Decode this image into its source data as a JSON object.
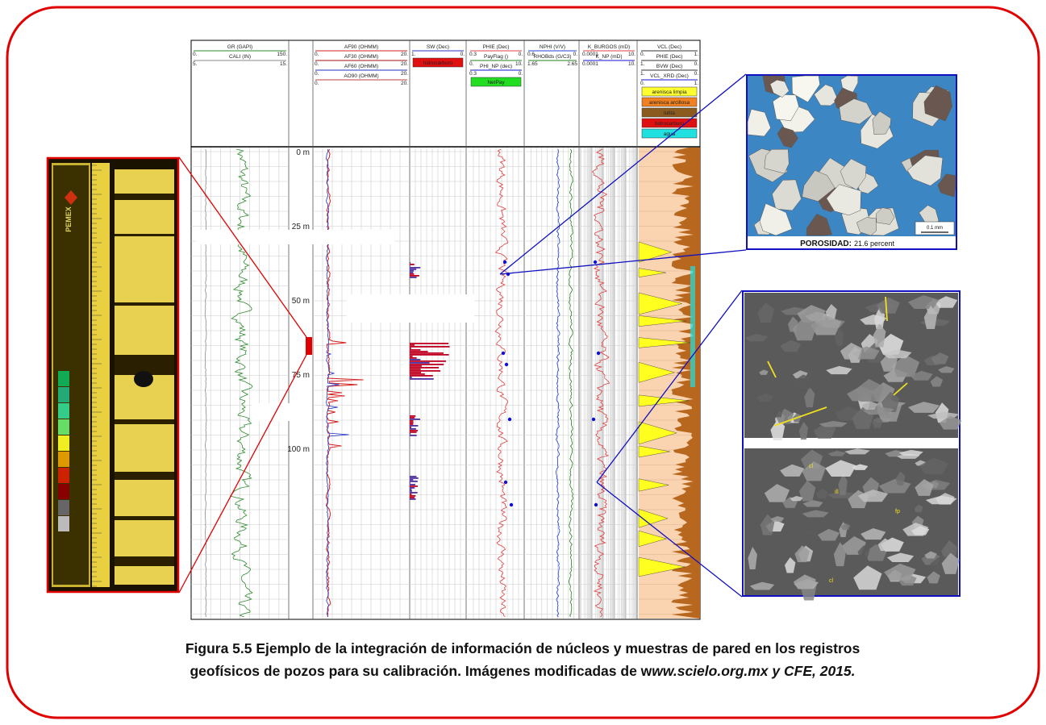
{
  "log": {
    "tracks": [
      {
        "curves": [
          {
            "name": "GR (GAPI)",
            "min": "0.",
            "max": "150.",
            "color": "#2e8b2e"
          },
          {
            "name": "CALI (IN)",
            "min": "5.",
            "max": "15.",
            "color": "#888888"
          }
        ]
      },
      {
        "curves": [
          {
            "name": "AF90 (OHMM)",
            "min": "0.",
            "max": "20.",
            "color": "#d42020"
          },
          {
            "name": "AF30 (OHMM)",
            "min": "0.",
            "max": "20.",
            "color": "#a01010"
          },
          {
            "name": "AF60 (OHMM)",
            "min": "0.",
            "max": "20.",
            "color": "#2030c0"
          },
          {
            "name": "AO90 (OHMM)",
            "min": "0.",
            "max": "20.",
            "color": "#c04040"
          }
        ]
      },
      {
        "curves": [
          {
            "name": "SW (Dec)",
            "min": "1.",
            "max": "0.",
            "color": "#3030c0"
          }
        ],
        "boxes": [
          {
            "label": "hidrocarburo",
            "color": "#e01010"
          }
        ]
      },
      {
        "curves": [
          {
            "name": "PHIE (Dec)",
            "min": "0.3",
            "max": "0.",
            "color": "#e04040"
          },
          {
            "name": "PayFlag ()",
            "min": "0.",
            "max": "10.",
            "color": "#208020"
          },
          {
            "name": "PHI_NP (dec)",
            "min": "0.3",
            "max": "0.",
            "color": "#1010d0"
          }
        ],
        "boxes": [
          {
            "label": "NetPay",
            "color": "#22dd22"
          }
        ]
      },
      {
        "curves": [
          {
            "name": "NPHI (V/V)",
            "min": "0.6",
            "max": "0.",
            "color": "#2040d0"
          },
          {
            "name": "RHOBds (G/C3)",
            "min": "1.65",
            "max": "2.65",
            "color": "#208020"
          }
        ]
      },
      {
        "curves": [
          {
            "name": "K_BURGOS (mD)",
            "min": "0.0001",
            "max": "10.",
            "color": "#e04040"
          },
          {
            "name": "K_NP (mD)",
            "min": "0.0001",
            "max": "10.",
            "color": "#1010d0"
          }
        ]
      },
      {
        "curves": [
          {
            "name": "VCL (Dec)",
            "min": "0.",
            "max": "1.",
            "color": "#333333"
          },
          {
            "name": "PHIE (Dec)",
            "min": "1.",
            "max": "0.",
            "color": "#333333"
          },
          {
            "name": "BVW (Dec)",
            "min": "1.",
            "max": "0.",
            "color": "#333333"
          },
          {
            "name": "VCL_XRD (Dec)",
            "min": "0.",
            "max": "1.",
            "color": "#1010d0"
          }
        ],
        "boxes": [
          {
            "label": "arenisca limpia",
            "color": "#ffff30"
          },
          {
            "label": "arenisca arcillosa",
            "color": "#f08020"
          },
          {
            "label": "lutita",
            "color": "#8b5a1e"
          },
          {
            "label": "hidrocarburo",
            "color": "#e01010"
          },
          {
            "label": "agua",
            "color": "#20e0e0"
          }
        ]
      }
    ],
    "depth_labels": [
      "0 m",
      "25 m",
      "50 m",
      "75 m",
      "100 m"
    ]
  },
  "thin_section": {
    "label": "POROSIDAD:",
    "value": "21.6 percent",
    "scale": "0.1 mm"
  },
  "core": {
    "logo": "PEMEX"
  },
  "sem": {
    "labels": [
      "cl",
      "ill",
      "fp",
      "cl"
    ]
  },
  "caption": {
    "line1": "Figura 5.5 Ejemplo de la integración de información de núcleos y muestras de pared en los registros",
    "line2_regular": "geofísicos de pozos para su calibración. Imágenes modificadas de w",
    "line2_italic": "ww.scielo.org.mx y CFE, 2015."
  }
}
